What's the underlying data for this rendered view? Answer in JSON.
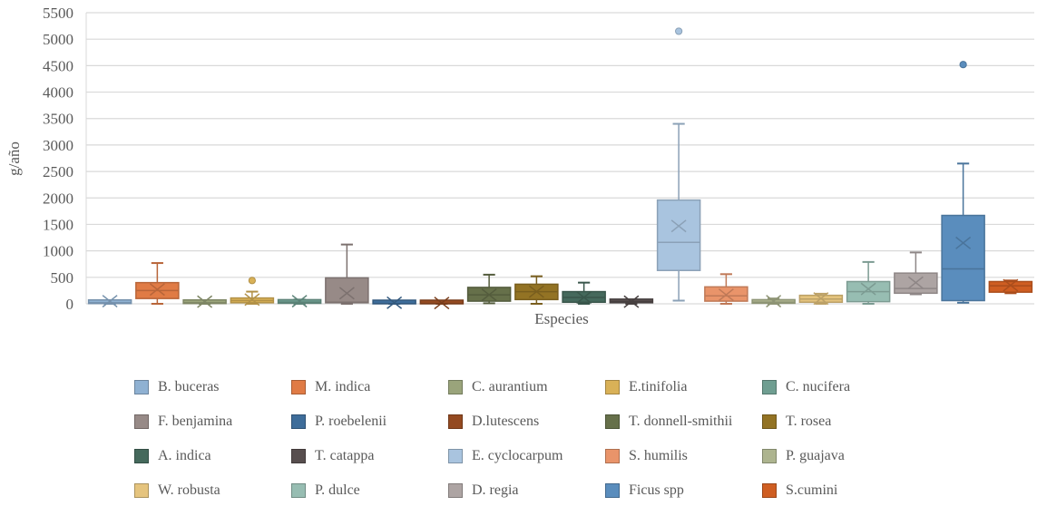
{
  "chart_data": {
    "type": "box",
    "title": "",
    "xlabel": "Especies",
    "ylabel": "g/año",
    "ylim": [
      0,
      5500
    ],
    "yticks": [
      0,
      500,
      1000,
      1500,
      2000,
      2500,
      3000,
      3500,
      4000,
      4500,
      5000,
      5500
    ],
    "ytick_labels": [
      "0",
      "500",
      "1000",
      "1500",
      "2000",
      "2500",
      "3000",
      "3500",
      "4000",
      "4500",
      "5000",
      "5500"
    ],
    "grid": true,
    "legend_position": "bottom",
    "series": [
      {
        "name": "B. buceras",
        "color": "#8fb1d2",
        "min": 0,
        "q1": 5,
        "median": 20,
        "q3": 40,
        "max": 60,
        "mean": 50,
        "outliers": []
      },
      {
        "name": "M. indica",
        "color": "#e07b45",
        "min": 0,
        "q1": 100,
        "median": 250,
        "q3": 400,
        "max": 770,
        "mean": 270,
        "outliers": []
      },
      {
        "name": "C. aurantium",
        "color": "#9aa47b",
        "min": 0,
        "q1": 5,
        "median": 20,
        "q3": 40,
        "max": 60,
        "mean": 40,
        "outliers": []
      },
      {
        "name": "E.tinifolia",
        "color": "#d9b157",
        "min": 0,
        "q1": 20,
        "median": 60,
        "q3": 110,
        "max": 230,
        "mean": 80,
        "outliers": [
          440
        ]
      },
      {
        "name": "C. nucifera",
        "color": "#6f9e91",
        "min": 0,
        "q1": 10,
        "median": 30,
        "q3": 60,
        "max": 80,
        "mean": 50,
        "outliers": []
      },
      {
        "name": "F. benjamina",
        "color": "#978a87",
        "min": 0,
        "q1": 20,
        "median": 30,
        "q3": 490,
        "max": 1120,
        "mean": 200,
        "outliers": []
      },
      {
        "name": "P. roebelenii",
        "color": "#3e6d9a",
        "min": 0,
        "q1": 0,
        "median": 5,
        "q3": 20,
        "max": 40,
        "mean": 20,
        "outliers": []
      },
      {
        "name": "D.lutescens",
        "color": "#944a21",
        "min": 0,
        "q1": 0,
        "median": 5,
        "q3": 20,
        "max": 40,
        "mean": 15,
        "outliers": []
      },
      {
        "name": "T. donnell-smithii",
        "color": "#66704a",
        "min": 10,
        "q1": 50,
        "median": 170,
        "q3": 310,
        "max": 550,
        "mean": 170,
        "outliers": []
      },
      {
        "name": "T. rosea",
        "color": "#937324",
        "min": 0,
        "q1": 80,
        "median": 230,
        "q3": 370,
        "max": 520,
        "mean": 230,
        "outliers": []
      },
      {
        "name": "A. indica",
        "color": "#45695c",
        "min": 0,
        "q1": 30,
        "median": 120,
        "q3": 230,
        "max": 400,
        "mean": 120,
        "outliers": []
      },
      {
        "name": "T. catappa",
        "color": "#574e4e",
        "min": 0,
        "q1": 20,
        "median": 40,
        "q3": 60,
        "max": 80,
        "mean": 40,
        "outliers": []
      },
      {
        "name": "E. cyclocarpum",
        "color": "#a9c4df",
        "min": 60,
        "q1": 630,
        "median": 1160,
        "q3": 1960,
        "max": 3400,
        "mean": 1470,
        "outliers": [
          5150
        ]
      },
      {
        "name": "S. humilis",
        "color": "#e9946a",
        "min": 0,
        "q1": 50,
        "median": 150,
        "q3": 320,
        "max": 560,
        "mean": 170,
        "outliers": []
      },
      {
        "name": "P. guajava",
        "color": "#adb48f",
        "min": 0,
        "q1": 10,
        "median": 30,
        "q3": 70,
        "max": 100,
        "mean": 50,
        "outliers": []
      },
      {
        "name": "W. robusta",
        "color": "#e5c47e",
        "min": 0,
        "q1": 30,
        "median": 90,
        "q3": 160,
        "max": 190,
        "mean": 100,
        "outliers": []
      },
      {
        "name": "P. dulce",
        "color": "#97bdb2",
        "min": 0,
        "q1": 40,
        "median": 230,
        "q3": 420,
        "max": 790,
        "mean": 280,
        "outliers": []
      },
      {
        "name": "D. regia",
        "color": "#ada4a3",
        "min": 180,
        "q1": 200,
        "median": 290,
        "q3": 580,
        "max": 970,
        "mean": 400,
        "outliers": []
      },
      {
        "name": "Ficus spp",
        "color": "#5a8dbd",
        "min": 20,
        "q1": 60,
        "median": 660,
        "q3": 1670,
        "max": 2650,
        "mean": 1150,
        "outliers": [
          4520
        ]
      },
      {
        "name": "S.cumini",
        "color": "#cf5e22",
        "min": 200,
        "q1": 220,
        "median": 340,
        "q3": 420,
        "max": 440,
        "mean": 350,
        "outliers": []
      }
    ]
  }
}
